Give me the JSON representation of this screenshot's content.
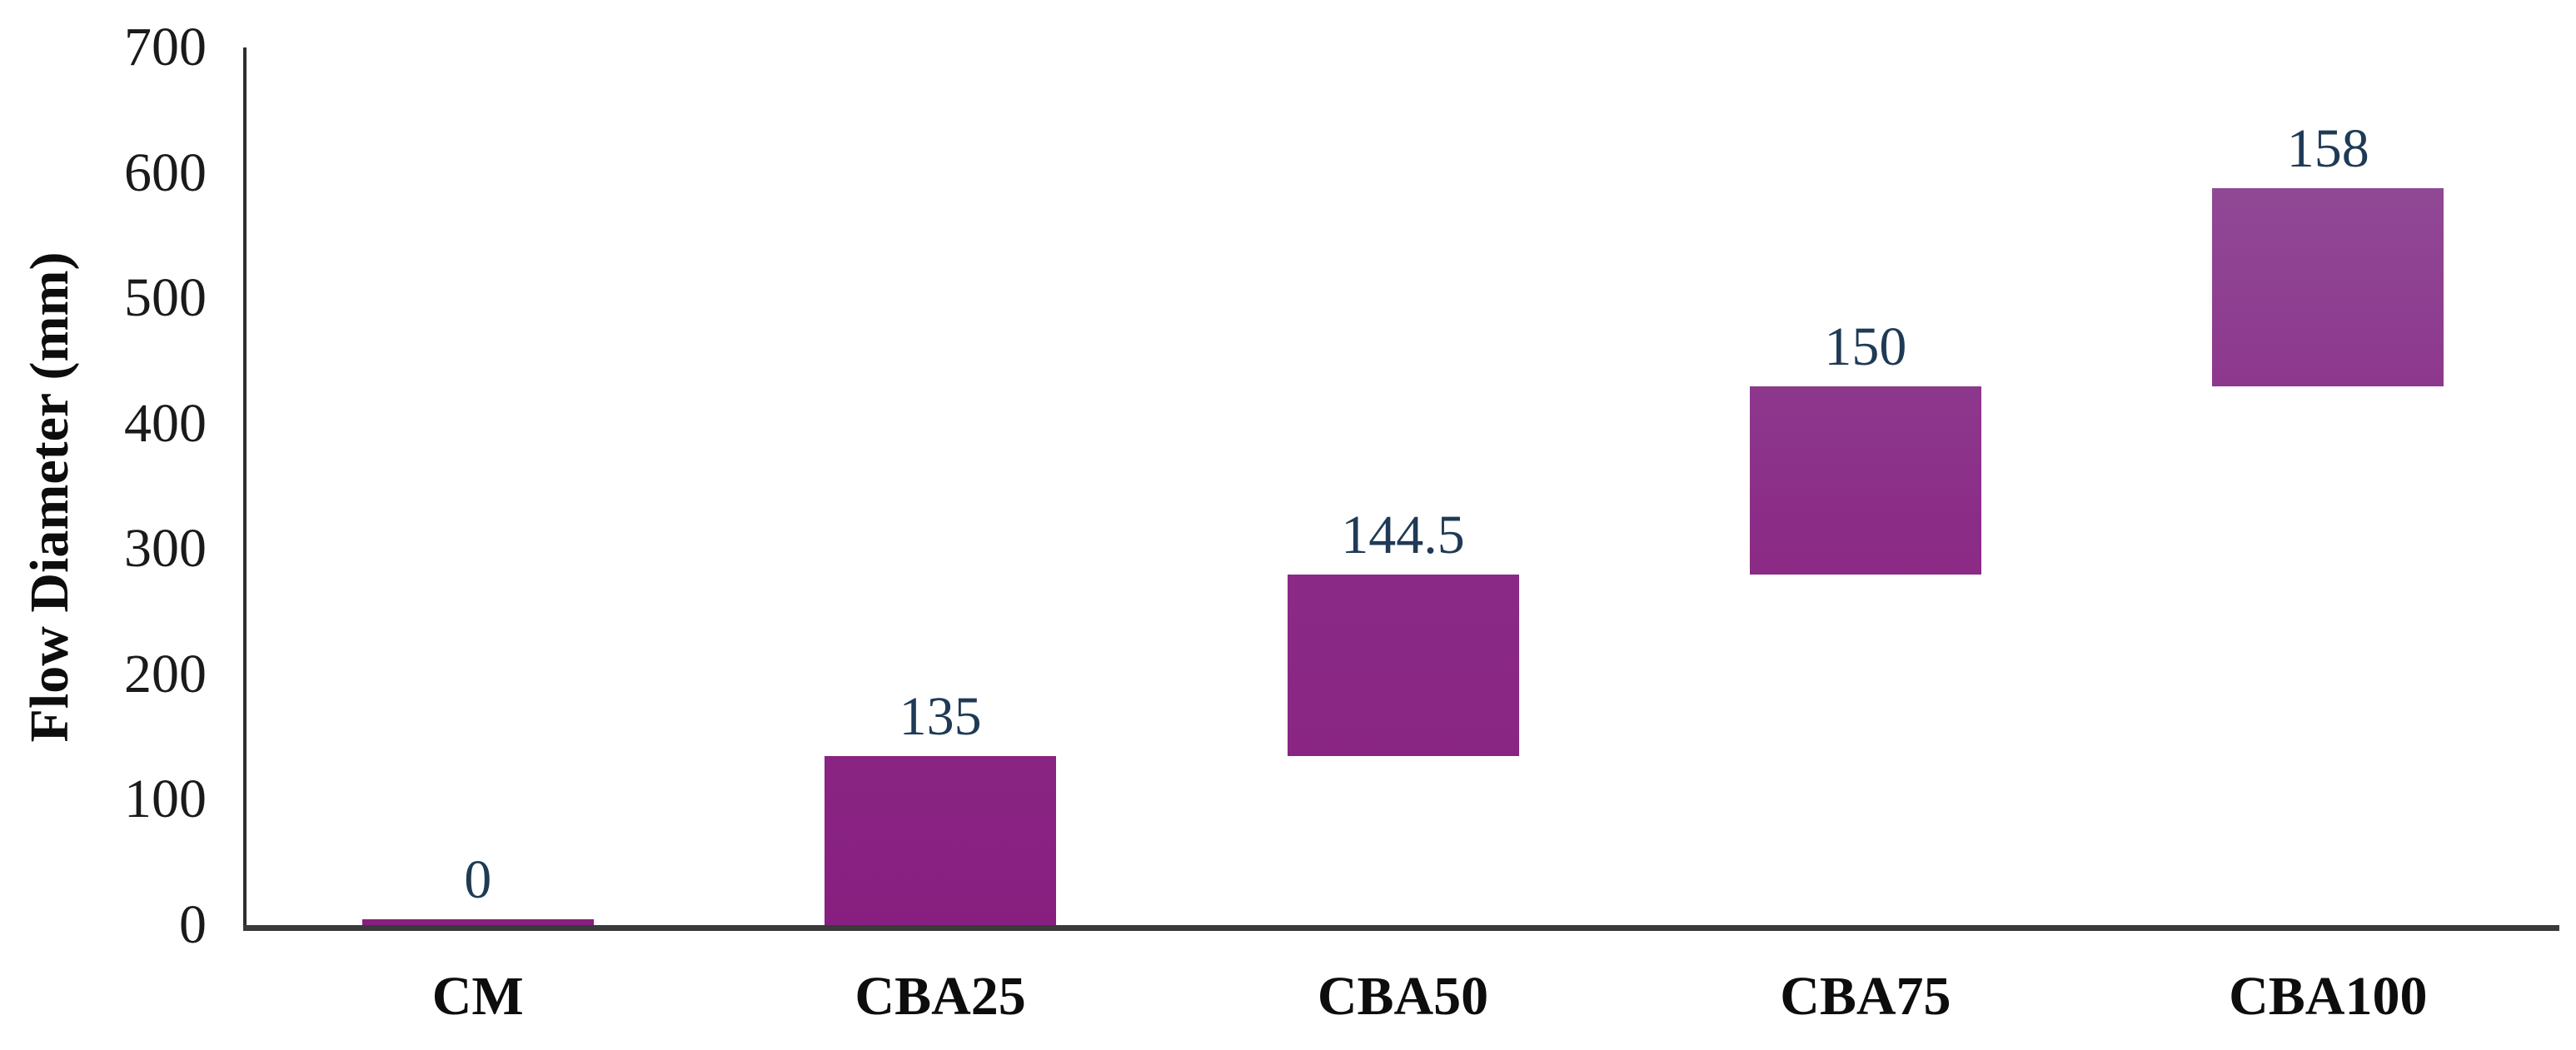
{
  "chart_data": {
    "type": "bar",
    "subtype": "floating-waterfall-bars",
    "title": "",
    "xlabel": "",
    "ylabel": "Flow Diameter (mm)",
    "ylim": [
      0,
      700
    ],
    "ytick_step": 100,
    "yticks": [
      "0",
      "100",
      "200",
      "300",
      "400",
      "500",
      "600",
      "700"
    ],
    "grid": false,
    "legend": false,
    "categories": [
      "CM",
      "CBA25",
      "CBA50",
      "CBA75",
      "CBA100"
    ],
    "series": [
      {
        "name": "Flow Diameter (mm)",
        "cumulative_stacking": true,
        "values": [
          0,
          135,
          144.5,
          150,
          158
        ],
        "data_labels": [
          "0",
          "135",
          "144.5",
          "150",
          "158"
        ],
        "segments": [
          [
            0,
            0
          ],
          [
            0,
            135
          ],
          [
            135,
            279.5
          ],
          [
            279.5,
            429.5
          ],
          [
            429.5,
            587.5
          ]
        ]
      }
    ],
    "colors": {
      "bar_gradient_top": "#93549B",
      "bar_gradient_mid": "#8B2C87",
      "bar_gradient_bottom": "#881F80",
      "data_label": "#1F3A55",
      "tick_label": "#1A1A1A",
      "category_label": "#0D0D0D",
      "y_axis_line": "#2E2E2E",
      "x_axis_line": "#3A3A3A",
      "background": "#FFFFFF"
    }
  }
}
